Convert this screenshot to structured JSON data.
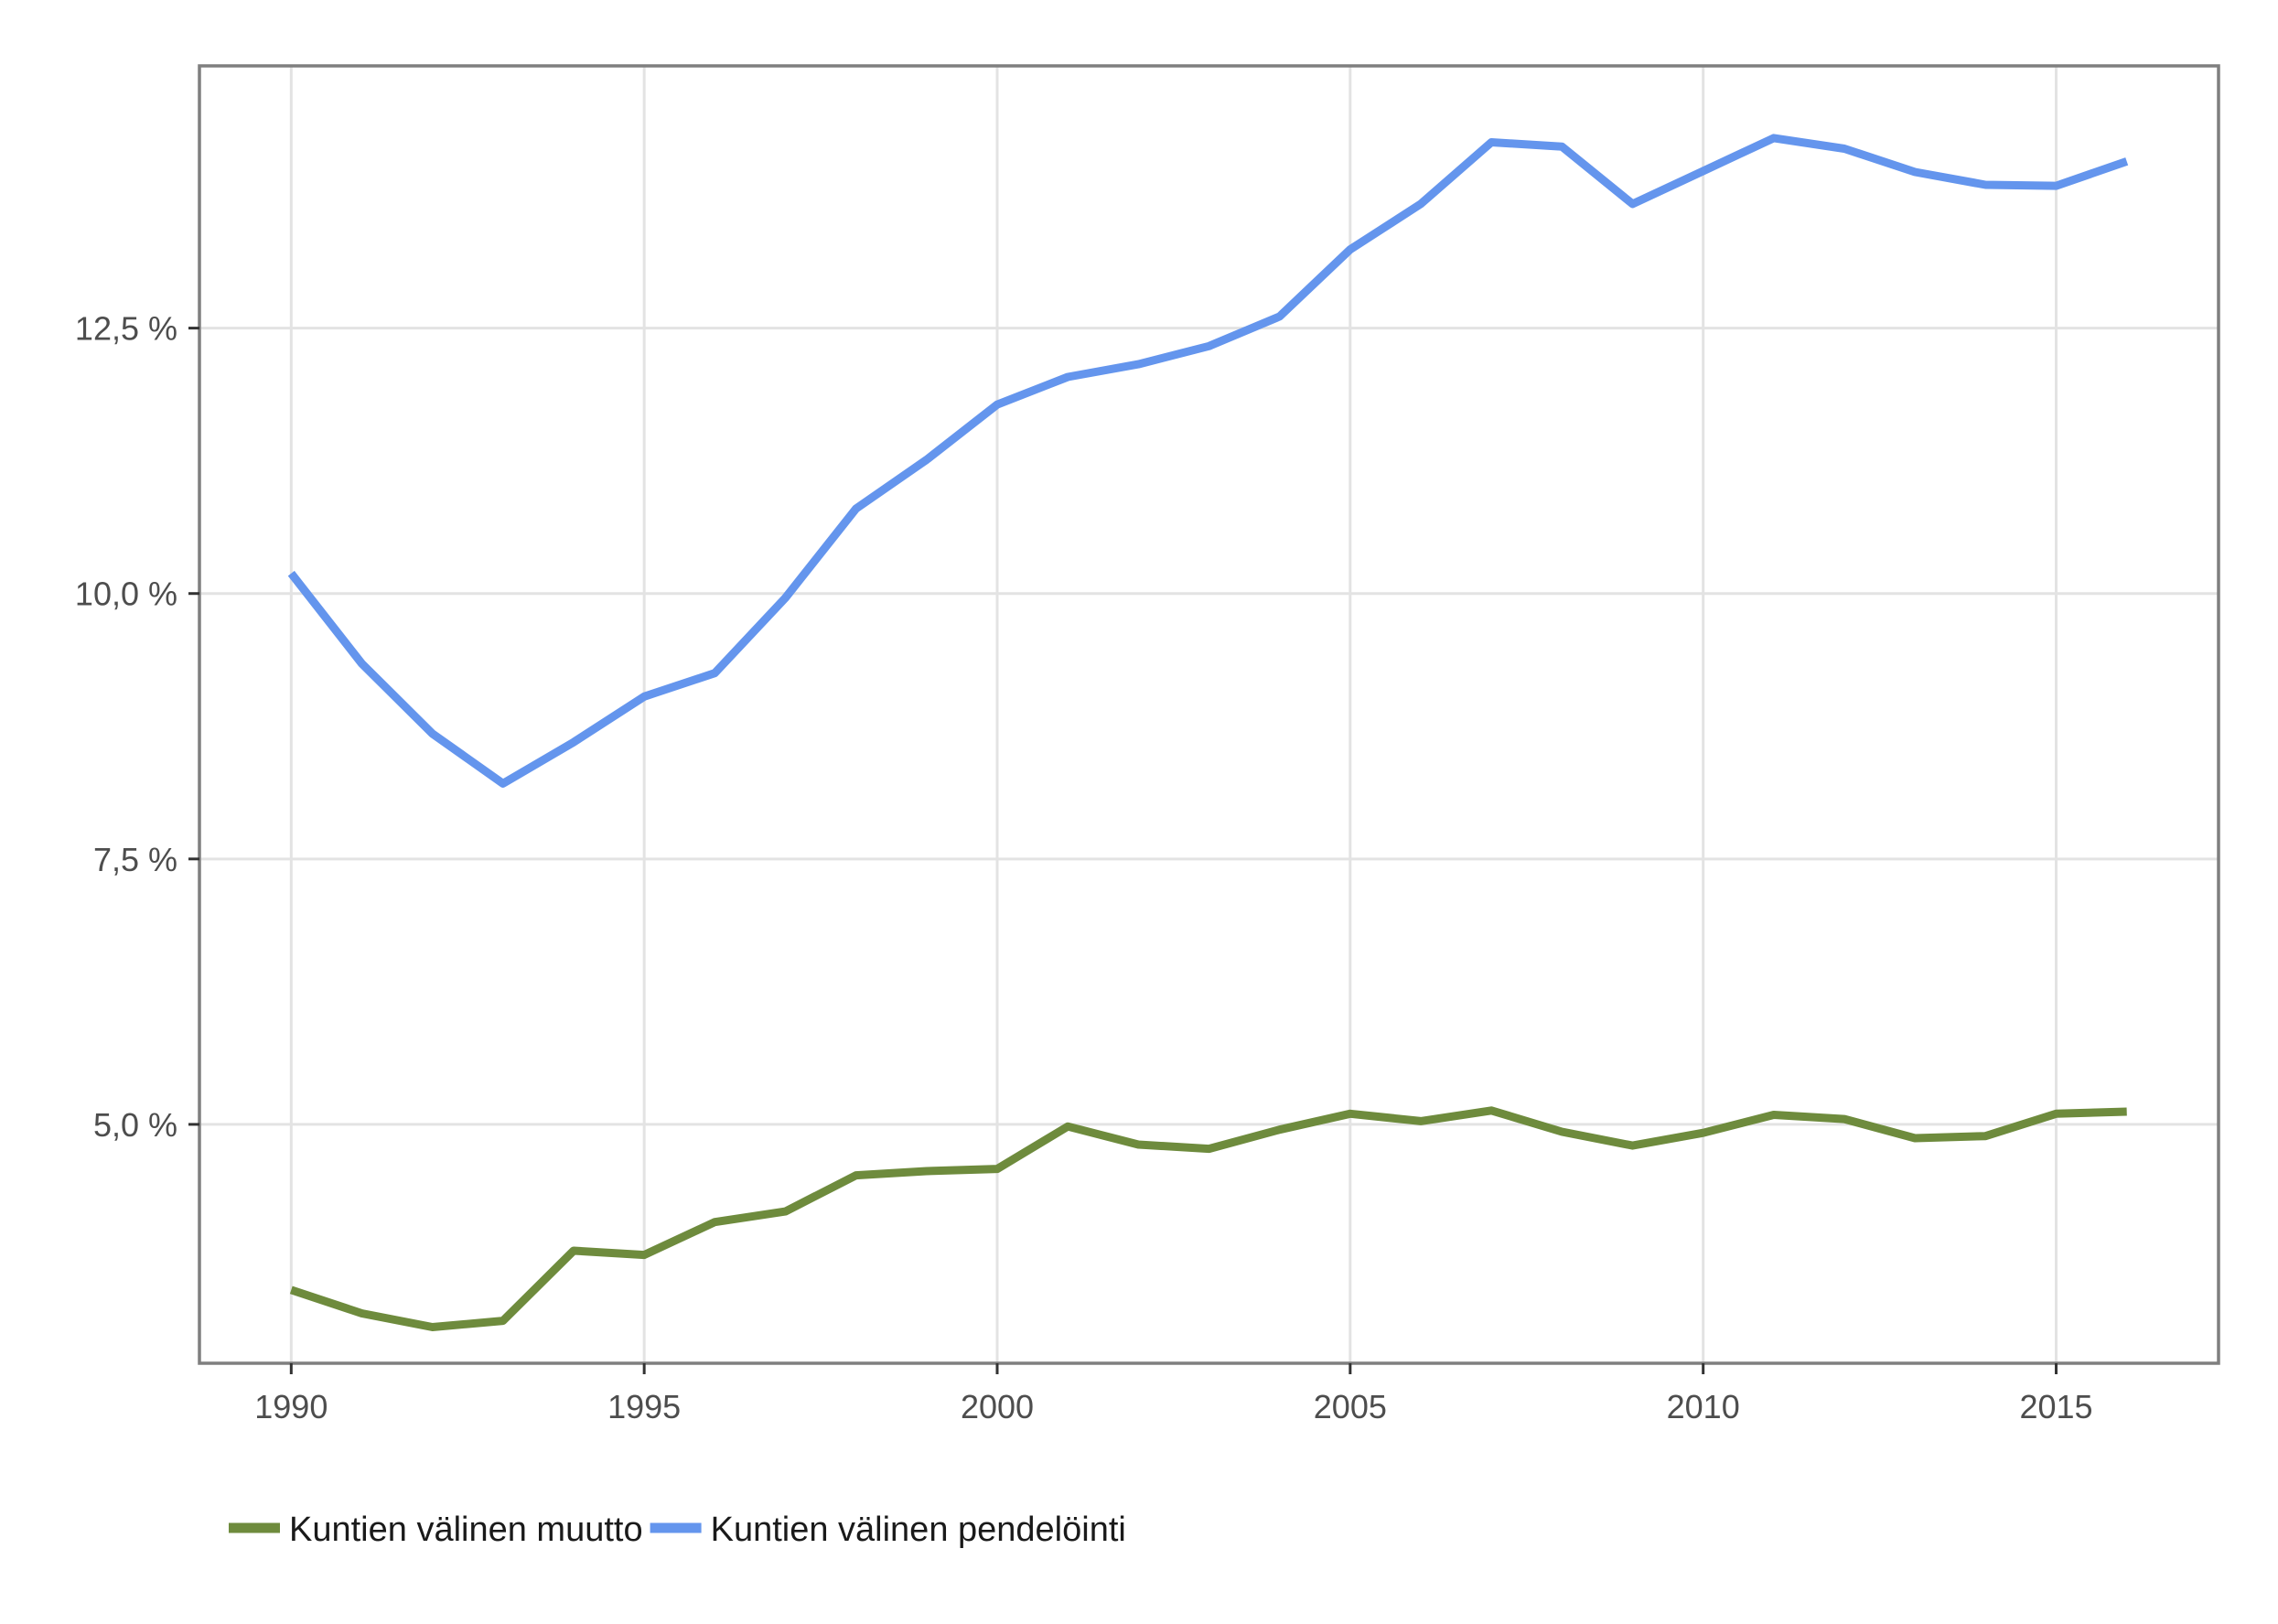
{
  "chart_data": {
    "type": "line",
    "title": "",
    "xlabel": "",
    "ylabel": "",
    "xlim": [
      1988.7,
      2017.3
    ],
    "ylim": [
      2.75,
      14.97
    ],
    "x_ticks": [
      {
        "value": 1990,
        "label": "1990"
      },
      {
        "value": 1995,
        "label": "1995"
      },
      {
        "value": 2000,
        "label": "2000"
      },
      {
        "value": 2005,
        "label": "2005"
      },
      {
        "value": 2010,
        "label": "2010"
      },
      {
        "value": 2015,
        "label": "2015"
      }
    ],
    "y_ticks": [
      {
        "value": 5.0,
        "label": "5,0 %"
      },
      {
        "value": 7.5,
        "label": "7,5 %"
      },
      {
        "value": 10.0,
        "label": "10,0 %"
      },
      {
        "value": 12.5,
        "label": "12,5 %"
      }
    ],
    "grid": true,
    "legend_position": "bottom-left",
    "x": [
      1990,
      1991,
      1992,
      1993,
      1994,
      1995,
      1996,
      1997,
      1998,
      1999,
      2000,
      2001,
      2002,
      2003,
      2004,
      2005,
      2006,
      2007,
      2008,
      2009,
      2010,
      2011,
      2012,
      2013,
      2014,
      2015,
      2016
    ],
    "series": [
      {
        "name": "Kuntien välinen muutto",
        "color": "#6e8b3d",
        "values": [
          3.44,
          3.22,
          3.09,
          3.15,
          3.81,
          3.77,
          4.08,
          4.18,
          4.52,
          4.56,
          4.58,
          4.98,
          4.81,
          4.77,
          4.95,
          5.1,
          5.03,
          5.13,
          4.93,
          4.8,
          4.92,
          5.09,
          5.05,
          4.87,
          4.89,
          5.1,
          5.12
        ]
      },
      {
        "name": "Kuntien välinen pendelöinti",
        "color": "#6495ed",
        "values": [
          10.19,
          9.34,
          8.68,
          8.21,
          8.6,
          9.03,
          9.25,
          9.96,
          10.8,
          11.26,
          11.78,
          12.04,
          12.16,
          12.33,
          12.61,
          13.24,
          13.67,
          14.25,
          14.21,
          13.67,
          13.98,
          14.29,
          14.19,
          13.97,
          13.85,
          13.84,
          14.07
        ]
      }
    ]
  }
}
